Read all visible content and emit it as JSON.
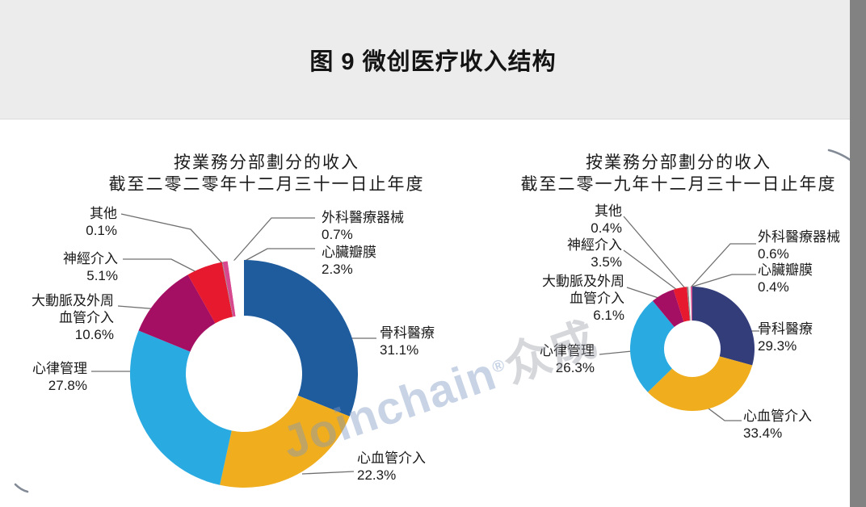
{
  "figure_title": "图 9 微创医疗收入结构",
  "watermark": {
    "brand": "Joinchain",
    "reg": "®",
    "suffix": "众成"
  },
  "chart_data": [
    {
      "type": "pie",
      "variant": "donut",
      "title": "按業務分部劃分的收入",
      "subtitle": "截至二零二零年十二月三十一日止年度",
      "unit": "%",
      "legend_position": "callout-labels",
      "segments": [
        {
          "name": "骨科醫療",
          "label_lines": [
            "骨科醫療"
          ],
          "value": 31.1,
          "pct": "31.1%",
          "color": "#1f5c9e"
        },
        {
          "name": "心血管介入",
          "label_lines": [
            "心血管介入"
          ],
          "value": 22.3,
          "pct": "22.3%",
          "color": "#f0ad1e"
        },
        {
          "name": "心律管理",
          "label_lines": [
            "心律管理"
          ],
          "value": 27.8,
          "pct": "27.8%",
          "color": "#29abe2"
        },
        {
          "name": "大動脈及外周血管介入",
          "label_lines": [
            "大動脈及外周",
            "血管介入"
          ],
          "value": 10.6,
          "pct": "10.6%",
          "color": "#a50f63"
        },
        {
          "name": "神經介入",
          "label_lines": [
            "神經介入"
          ],
          "value": 5.1,
          "pct": "5.1%",
          "color": "#e6192e"
        },
        {
          "name": "其他",
          "label_lines": [
            "其他"
          ],
          "value": 0.1,
          "pct": "0.1%",
          "color": "#8e8e8e"
        },
        {
          "name": "外科醫療器械",
          "label_lines": [
            "外科醫療器械"
          ],
          "value": 0.7,
          "pct": "0.7%",
          "color": "#d8488e"
        },
        {
          "name": "心臟瓣膜",
          "label_lines": [
            "心臟瓣膜"
          ],
          "value": 2.3,
          "pct": "2.3%",
          "color": "#ffffff"
        }
      ]
    },
    {
      "type": "pie",
      "variant": "donut",
      "title": "按業務分部劃分的收入",
      "subtitle": "截至二零一九年十二月三十一日止年度",
      "unit": "%",
      "legend_position": "callout-labels",
      "segments": [
        {
          "name": "骨科醫療",
          "label_lines": [
            "骨科醫療"
          ],
          "value": 29.3,
          "pct": "29.3%",
          "color": "#323d7a"
        },
        {
          "name": "心血管介入",
          "label_lines": [
            "心血管介入"
          ],
          "value": 33.4,
          "pct": "33.4%",
          "color": "#f0ad1e"
        },
        {
          "name": "心律管理",
          "label_lines": [
            "心律管理"
          ],
          "value": 26.3,
          "pct": "26.3%",
          "color": "#29abe2"
        },
        {
          "name": "大動脈及外周血管介入",
          "label_lines": [
            "大動脈及外周",
            "血管介入"
          ],
          "value": 6.1,
          "pct": "6.1%",
          "color": "#a50f63"
        },
        {
          "name": "神經介入",
          "label_lines": [
            "神經介入"
          ],
          "value": 3.5,
          "pct": "3.5%",
          "color": "#e6192e"
        },
        {
          "name": "其他",
          "label_lines": [
            "其他"
          ],
          "value": 0.4,
          "pct": "0.4%",
          "color": "#8e8e8e"
        },
        {
          "name": "外科醫療器械",
          "label_lines": [
            "外科醫療器械"
          ],
          "value": 0.6,
          "pct": "0.6%",
          "color": "#f2f2f2"
        },
        {
          "name": "心臟瓣膜",
          "label_lines": [
            "心臟瓣膜"
          ],
          "value": 0.4,
          "pct": "0.4%",
          "color": "#d8488e"
        }
      ]
    }
  ]
}
